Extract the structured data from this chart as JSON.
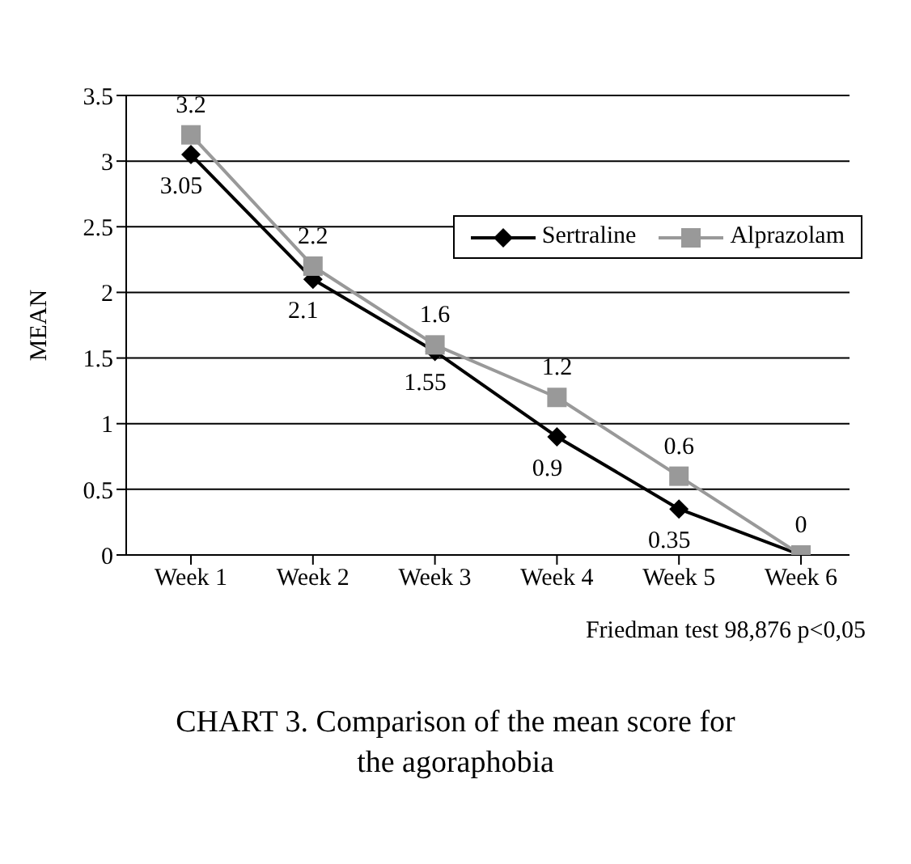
{
  "chart_data": {
    "type": "line",
    "ylabel": "MEAN",
    "categories": [
      "Week 1",
      "Week 2",
      "Week 3",
      "Week 4",
      "Week 5",
      "Week 6"
    ],
    "series": [
      {
        "name": "Sertraline",
        "color": "#000000",
        "marker": "diamond",
        "values": [
          3.05,
          2.1,
          1.55,
          0.9,
          0.35,
          0
        ],
        "value_labels": [
          "3.05",
          "2.1",
          "1.55",
          "0.9",
          "0.35",
          null
        ]
      },
      {
        "name": "Alprazolam",
        "color": "#999999",
        "marker": "square",
        "values": [
          3.2,
          2.2,
          1.6,
          1.2,
          0.6,
          0
        ],
        "value_labels": [
          "3.2",
          "2.2",
          "1.6",
          "1.2",
          "0.6",
          "0"
        ]
      }
    ],
    "ylim": [
      0,
      3.5
    ],
    "yticks": [
      0,
      0.5,
      1,
      1.5,
      2,
      2.5,
      3,
      3.5
    ],
    "grid": "y",
    "legend": "top right",
    "line_style": "solid",
    "annotations": [
      "Friedman test 98,876 p<0,05",
      "CHART 3. Comparison of the mean score for the agoraphobia"
    ]
  }
}
